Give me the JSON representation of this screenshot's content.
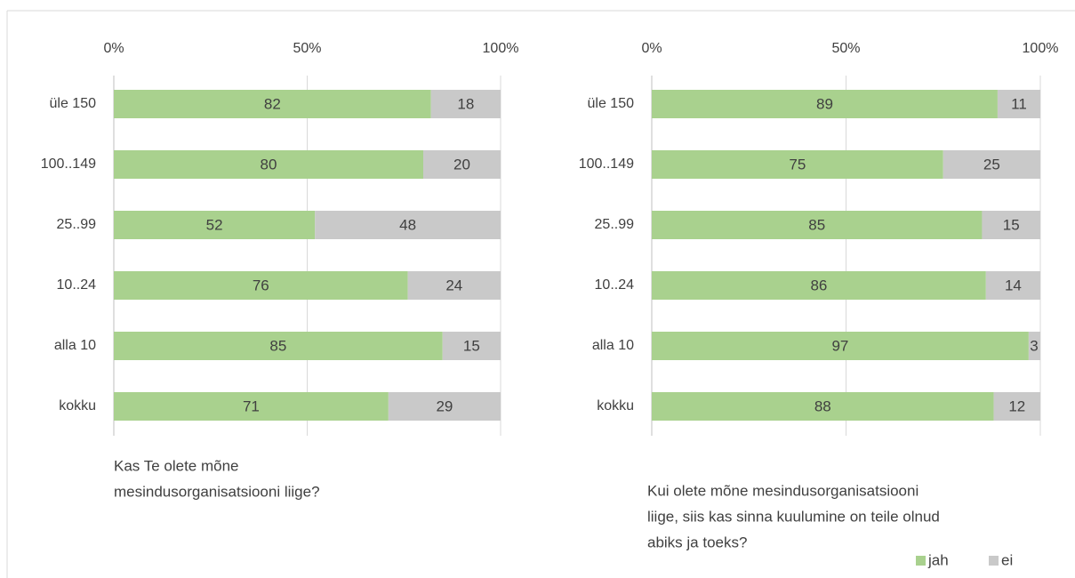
{
  "chart_data": [
    {
      "type": "bar",
      "orientation": "horizontal",
      "stacked": true,
      "title": [
        "Kas Te olete mõne",
        "mesindusorganisatsiooni liige?"
      ],
      "categories": [
        "üle 150",
        "100..149",
        "25..99",
        "10..24",
        "alla 10",
        "kokku"
      ],
      "series": [
        {
          "color": "#a9d18e",
          "values": [
            82,
            80,
            52,
            76,
            85,
            71
          ]
        },
        {
          "color": "#c9c9c9",
          "values": [
            18,
            20,
            48,
            24,
            15,
            29
          ]
        }
      ],
      "xlim": [
        0,
        100
      ],
      "xticks": [
        {
          "value": 0,
          "label": "0%"
        },
        {
          "value": 50,
          "label": "50%"
        },
        {
          "value": 100,
          "label": "100%"
        }
      ],
      "grid": true
    },
    {
      "type": "bar",
      "orientation": "horizontal",
      "stacked": true,
      "title": [
        "Kui olete mõne mesindusorganisatsiooni",
        "liige, siis kas sinna kuulumine on teile olnud",
        "abiks ja toeks?"
      ],
      "categories": [
        "üle 150",
        "100..149",
        "25..99",
        "10..24",
        "alla 10",
        "kokku"
      ],
      "series": [
        {
          "name": "jah",
          "color": "#a9d18e",
          "values": [
            89,
            75,
            85,
            86,
            97,
            88
          ]
        },
        {
          "name": "ei",
          "color": "#c9c9c9",
          "values": [
            11,
            25,
            15,
            14,
            3,
            12
          ]
        }
      ],
      "xlim": [
        0,
        100
      ],
      "xticks": [
        {
          "value": 0,
          "label": "0%"
        },
        {
          "value": 50,
          "label": "50%"
        },
        {
          "value": 100,
          "label": "100%"
        }
      ],
      "grid": true,
      "legend": "bottom-right"
    }
  ]
}
